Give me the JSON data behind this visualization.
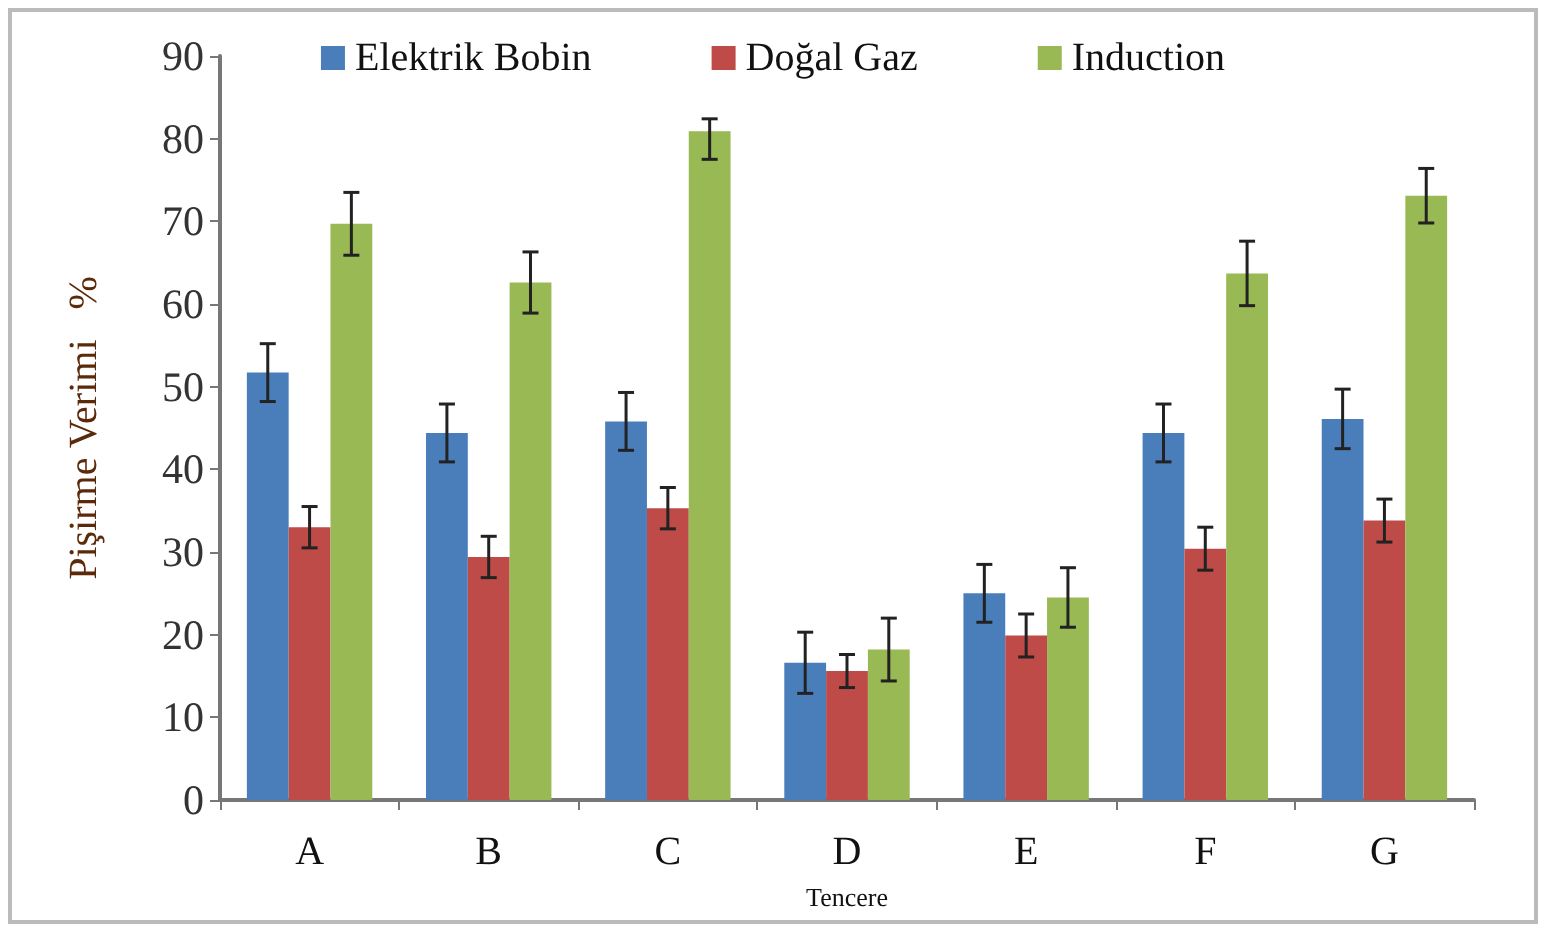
{
  "chart_data": {
    "type": "bar",
    "xlabel": "Tencere",
    "ylabel": "Pişirme Verimi   %",
    "categories": [
      "A",
      "B",
      "C",
      "D",
      "E",
      "F",
      "G"
    ],
    "series": [
      {
        "name": "Elektrik Bobin",
        "color": "#4a7ebb",
        "values": [
          51.7,
          44.4,
          45.8,
          16.6,
          25.0,
          44.4,
          46.1
        ],
        "errors": [
          3.5,
          3.5,
          3.5,
          3.7,
          3.5,
          3.5,
          3.6
        ]
      },
      {
        "name": "Doğal Gaz",
        "color": "#be4b48",
        "values": [
          33.0,
          29.4,
          35.3,
          15.6,
          19.9,
          30.4,
          33.8
        ],
        "errors": [
          2.5,
          2.5,
          2.5,
          2.0,
          2.6,
          2.6,
          2.6
        ]
      },
      {
        "name": "Induction",
        "color": "#98b954",
        "values": [
          69.7,
          62.6,
          80.9,
          18.2,
          24.5,
          63.7,
          73.1
        ],
        "errors": [
          3.8,
          3.7,
          [
            77.5,
            82.4
          ],
          3.8,
          3.6,
          3.9,
          3.3
        ]
      }
    ],
    "ylim": [
      0,
      90
    ],
    "yticks": [
      0,
      10,
      20,
      30,
      40,
      50,
      60,
      70,
      80,
      90
    ],
    "grid": false,
    "legend": "top"
  }
}
